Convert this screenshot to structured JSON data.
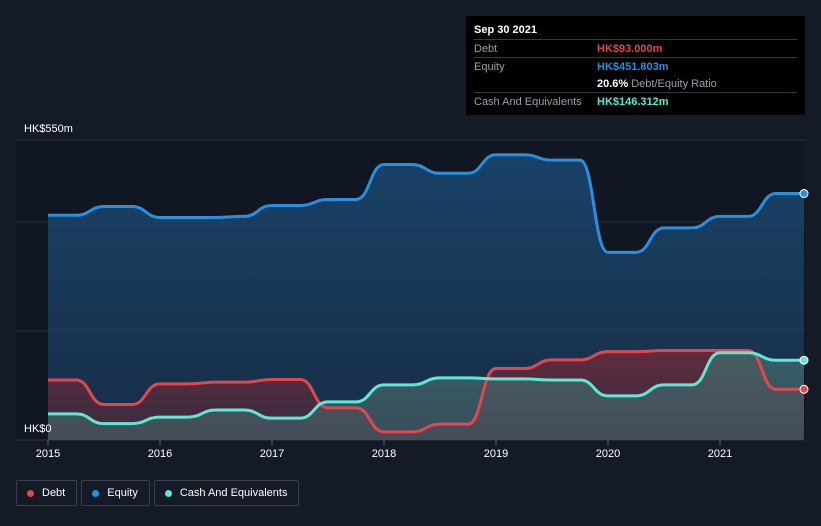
{
  "tooltip": {
    "date": "Sep 30 2021",
    "debt_label": "Debt",
    "debt_value": "HK$93.000m",
    "equity_label": "Equity",
    "equity_value": "HK$451.803m",
    "ratio_value": "20.6%",
    "ratio_label": "Debt/Equity Ratio",
    "cash_label": "Cash And Equivalents",
    "cash_value": "HK$146.312m"
  },
  "legend": {
    "debt": "Debt",
    "equity": "Equity",
    "cash": "Cash And Equivalents"
  },
  "colors": {
    "debt": "#e2474f",
    "equity": "#2a8fe0",
    "cash": "#5ee8d5",
    "background": "#151b26"
  },
  "chart_data": {
    "type": "area",
    "title": "",
    "xlabel": "",
    "ylabel": "",
    "unit": "HK$m",
    "y_ticks": [
      {
        "value": 0,
        "label": "HK$0"
      },
      {
        "value": 550,
        "label": "HK$550m"
      }
    ],
    "ylim": [
      0,
      550
    ],
    "xlim": [
      2014.75,
      2021.75
    ],
    "x_ticks": [
      {
        "value": 2015,
        "label": "2015"
      },
      {
        "value": 2016,
        "label": "2016"
      },
      {
        "value": 2017,
        "label": "2017"
      },
      {
        "value": 2018,
        "label": "2018"
      },
      {
        "value": 2019,
        "label": "2019"
      },
      {
        "value": 2020,
        "label": "2020"
      },
      {
        "value": 2021,
        "label": "2021"
      }
    ],
    "series": [
      {
        "name": "Equity",
        "points": [
          [
            2015.0,
            412
          ],
          [
            2015.25,
            412
          ],
          [
            2015.5,
            428
          ],
          [
            2015.75,
            428
          ],
          [
            2016.0,
            408
          ],
          [
            2016.25,
            408
          ],
          [
            2016.5,
            408
          ],
          [
            2016.75,
            410
          ],
          [
            2017.0,
            430
          ],
          [
            2017.25,
            430
          ],
          [
            2017.5,
            441
          ],
          [
            2017.75,
            441
          ],
          [
            2018.0,
            505
          ],
          [
            2018.25,
            505
          ],
          [
            2018.5,
            489
          ],
          [
            2018.75,
            489
          ],
          [
            2019.0,
            523
          ],
          [
            2019.25,
            523
          ],
          [
            2019.5,
            513
          ],
          [
            2019.75,
            513
          ],
          [
            2020.0,
            344
          ],
          [
            2020.25,
            344
          ],
          [
            2020.5,
            389
          ],
          [
            2020.75,
            389
          ],
          [
            2021.0,
            410
          ],
          [
            2021.25,
            410
          ],
          [
            2021.5,
            451.803
          ],
          [
            2021.75,
            451.803
          ]
        ]
      },
      {
        "name": "Debt",
        "points": [
          [
            2015.0,
            110
          ],
          [
            2015.25,
            110
          ],
          [
            2015.5,
            65
          ],
          [
            2015.75,
            65
          ],
          [
            2016.0,
            103
          ],
          [
            2016.25,
            103
          ],
          [
            2016.5,
            106
          ],
          [
            2016.75,
            106
          ],
          [
            2017.0,
            111
          ],
          [
            2017.25,
            111
          ],
          [
            2017.5,
            59
          ],
          [
            2017.75,
            59
          ],
          [
            2018.0,
            15
          ],
          [
            2018.25,
            15
          ],
          [
            2018.5,
            29
          ],
          [
            2018.75,
            29
          ],
          [
            2019.0,
            131
          ],
          [
            2019.25,
            131
          ],
          [
            2019.5,
            147
          ],
          [
            2019.75,
            147
          ],
          [
            2020.0,
            162
          ],
          [
            2020.25,
            162
          ],
          [
            2020.5,
            164
          ],
          [
            2020.75,
            164
          ],
          [
            2021.0,
            164
          ],
          [
            2021.25,
            164
          ],
          [
            2021.5,
            93.0
          ],
          [
            2021.75,
            93.0
          ]
        ]
      },
      {
        "name": "Cash And Equivalents",
        "points": [
          [
            2015.0,
            48
          ],
          [
            2015.25,
            48
          ],
          [
            2015.5,
            30
          ],
          [
            2015.75,
            30
          ],
          [
            2016.0,
            42
          ],
          [
            2016.25,
            42
          ],
          [
            2016.5,
            55
          ],
          [
            2016.75,
            55
          ],
          [
            2017.0,
            40
          ],
          [
            2017.25,
            40
          ],
          [
            2017.5,
            70
          ],
          [
            2017.75,
            70
          ],
          [
            2018.0,
            101
          ],
          [
            2018.25,
            101
          ],
          [
            2018.5,
            114
          ],
          [
            2018.75,
            114
          ],
          [
            2019.0,
            112
          ],
          [
            2019.25,
            112
          ],
          [
            2019.5,
            110
          ],
          [
            2019.75,
            110
          ],
          [
            2020.0,
            81
          ],
          [
            2020.25,
            81
          ],
          [
            2020.5,
            101
          ],
          [
            2020.75,
            101
          ],
          [
            2021.0,
            160
          ],
          [
            2021.25,
            160
          ],
          [
            2021.5,
            146.312
          ],
          [
            2021.75,
            146.312
          ]
        ]
      }
    ]
  }
}
